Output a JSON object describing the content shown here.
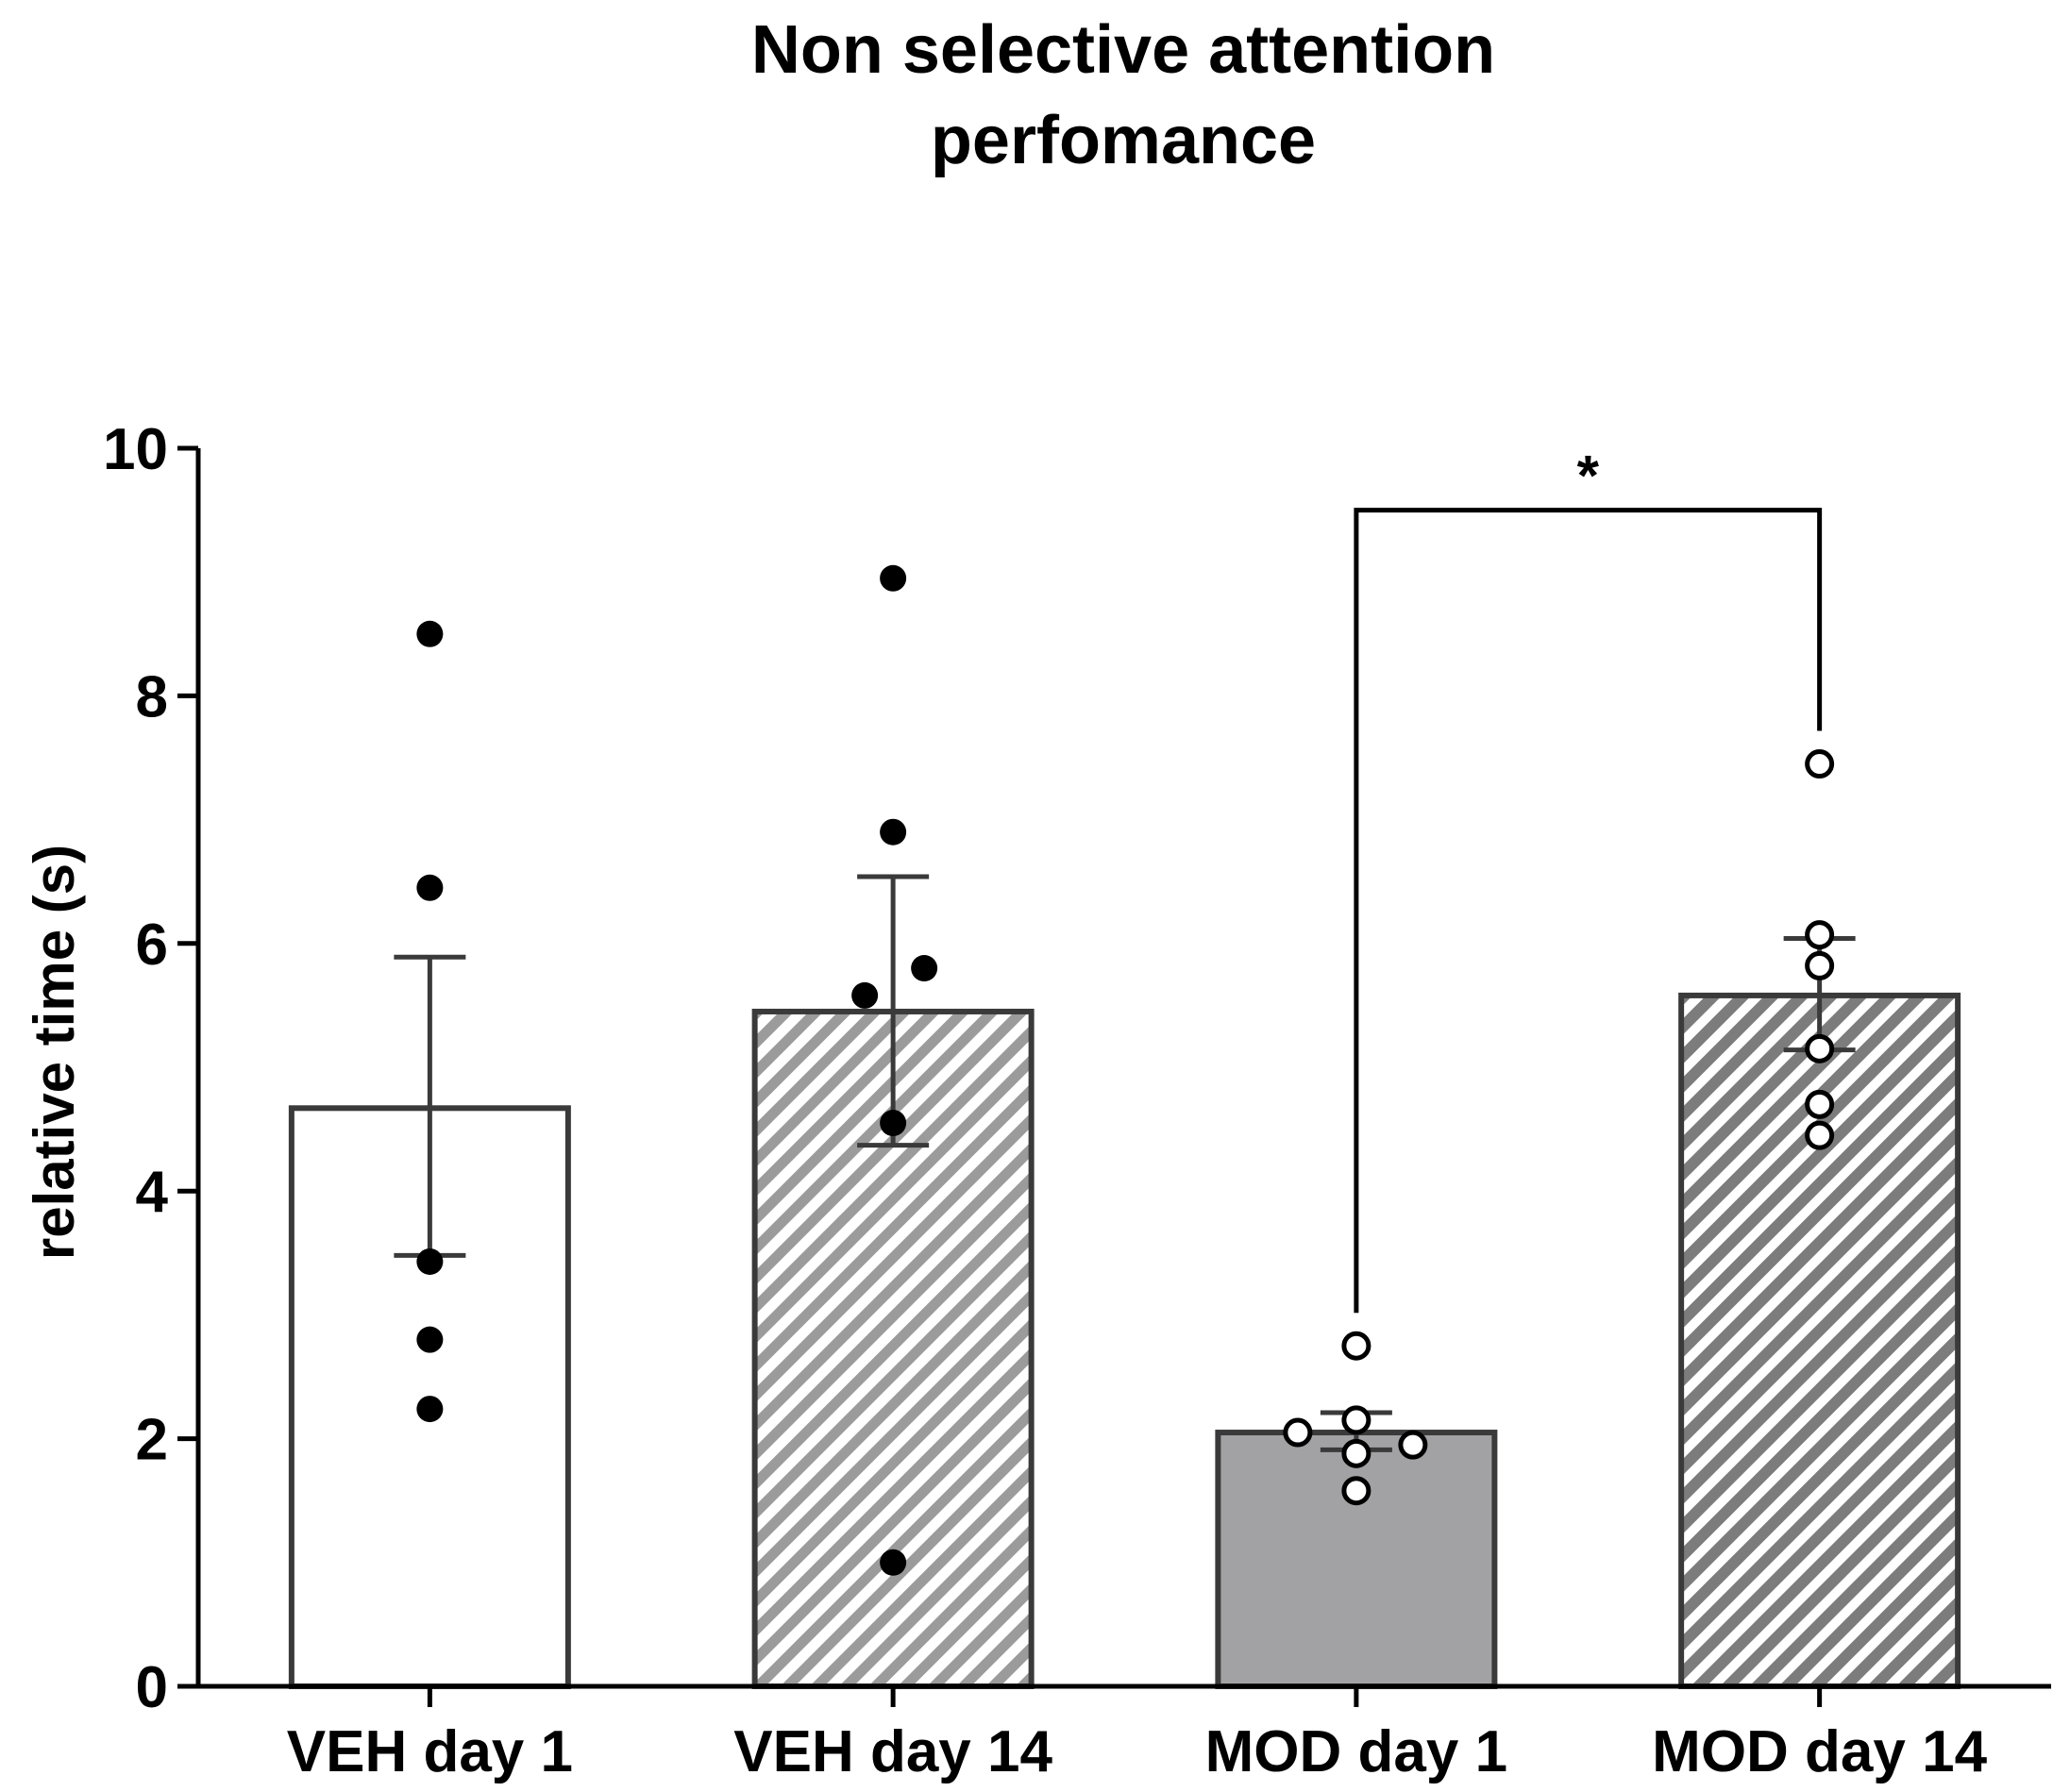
{
  "chart_data": {
    "type": "bar",
    "title_lines": [
      "Non selective attention",
      "perfomance"
    ],
    "xlabel": "",
    "ylabel": "relative time (s)",
    "ylim": [
      0,
      10
    ],
    "yticks": [
      0,
      2,
      4,
      6,
      8,
      10
    ],
    "ytick_labels": [
      "0",
      "2",
      "4",
      "6",
      "8",
      "10"
    ],
    "categories": [
      "VEH day 1",
      "VEH day 14",
      "MOD day 1",
      "MOD day 14"
    ],
    "values": [
      4.67,
      5.45,
      2.05,
      5.58
    ],
    "error_low": [
      3.48,
      4.37,
      1.91,
      5.14
    ],
    "error_high": [
      5.89,
      6.54,
      2.21,
      6.04
    ],
    "bar_styles": [
      "open",
      "hatched-light",
      "solid-gray",
      "hatched-dark"
    ],
    "points": [
      [
        8.5,
        6.45,
        3.43,
        2.8,
        2.24
      ],
      [
        8.95,
        6.9,
        5.8,
        5.58,
        4.55,
        1.0
      ],
      [
        2.75,
        2.15,
        2.05,
        1.95,
        1.88,
        1.58
      ],
      [
        7.45,
        6.07,
        5.82,
        5.15,
        4.7,
        4.45
      ]
    ],
    "point_styles": [
      "filled",
      "filled",
      "open",
      "open"
    ],
    "significance": [
      {
        "from": 2,
        "to": 3,
        "label": "*",
        "y": 9.5
      }
    ],
    "colors": {
      "axis": "#000000",
      "bar_edge": "#3a3a3a",
      "hatch": "#9b9b9b",
      "hatch_dark": "#7c7c7c",
      "solid_bar": "#a2a2a4"
    }
  }
}
